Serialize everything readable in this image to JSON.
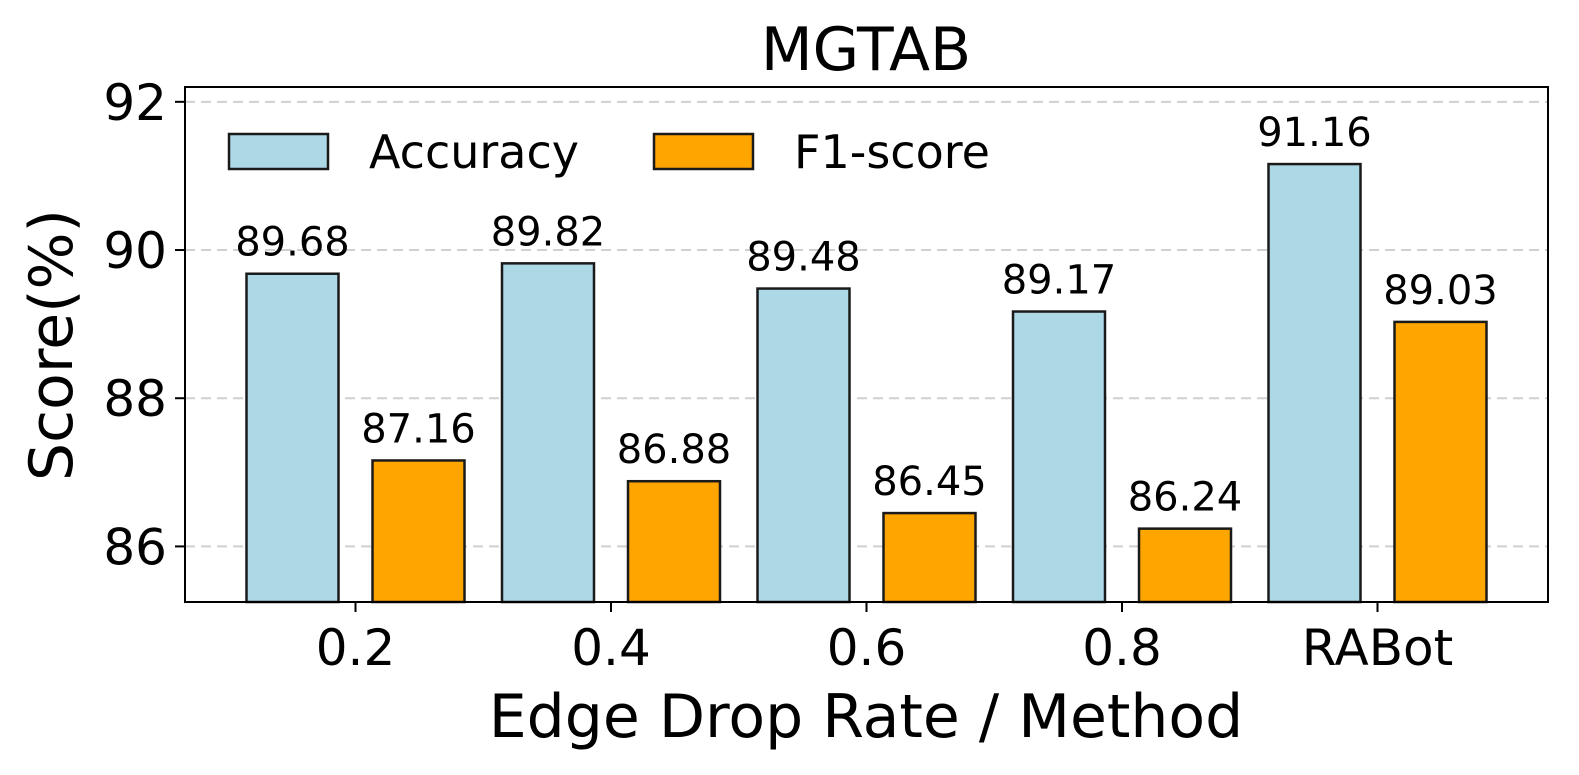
{
  "chart_data": {
    "type": "bar",
    "title": "MGTAB",
    "xlabel": "Edge Drop Rate / Method",
    "ylabel": "Score(%)",
    "categories": [
      "0.2",
      "0.4",
      "0.6",
      "0.8",
      "RABot"
    ],
    "series": [
      {
        "name": "Accuracy",
        "color": "#ADD8E6",
        "values": [
          89.68,
          89.82,
          89.48,
          89.17,
          91.16
        ]
      },
      {
        "name": "F1-score",
        "color": "#FFA500",
        "values": [
          87.16,
          86.88,
          86.45,
          86.24,
          89.03
        ]
      }
    ],
    "ylim": [
      85.25,
      92.2
    ],
    "yticks": [
      86,
      88,
      90,
      92
    ],
    "grid": true,
    "legend_position": "top-left"
  }
}
